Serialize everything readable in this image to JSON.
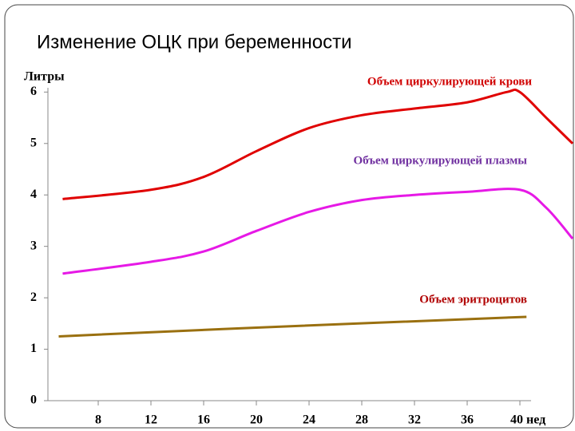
{
  "chart_data": {
    "type": "line",
    "title": "Изменение ОЦК при беременности",
    "ylabel": "Литры",
    "xlim": [
      4,
      44
    ],
    "xticks": [
      8,
      12,
      16,
      20,
      24,
      28,
      32,
      36,
      {
        "value": 40,
        "label": "40 нед"
      }
    ],
    "ylim": [
      0,
      6.3
    ],
    "yticks": [
      0,
      1,
      2,
      3,
      4,
      5,
      6
    ],
    "series": [
      {
        "name": "Объем циркулирующей крови",
        "color": "#e00000",
        "x": [
          5.3,
          12,
          16,
          20,
          24,
          28,
          32,
          36,
          39,
          40,
          42,
          44
        ],
        "values": [
          3.92,
          4.1,
          4.35,
          4.85,
          5.3,
          5.55,
          5.68,
          5.8,
          6.0,
          6.0,
          5.5,
          5.0
        ]
      },
      {
        "name": "Объем циркулирующей плазмы",
        "color": "#e619e6",
        "x": [
          5.3,
          12,
          16,
          20,
          24,
          28,
          32,
          36,
          40,
          42,
          44
        ],
        "values": [
          2.47,
          2.7,
          2.9,
          3.3,
          3.67,
          3.9,
          4.0,
          4.06,
          4.1,
          3.75,
          3.15
        ]
      },
      {
        "name": "Объем эритроцитов",
        "color": "#9a7010",
        "x": [
          5,
          20,
          40.5
        ],
        "values": [
          1.25,
          1.42,
          1.63
        ]
      }
    ],
    "label_colors": [
      "#d00000",
      "#7030a0",
      "#b00000"
    ]
  }
}
